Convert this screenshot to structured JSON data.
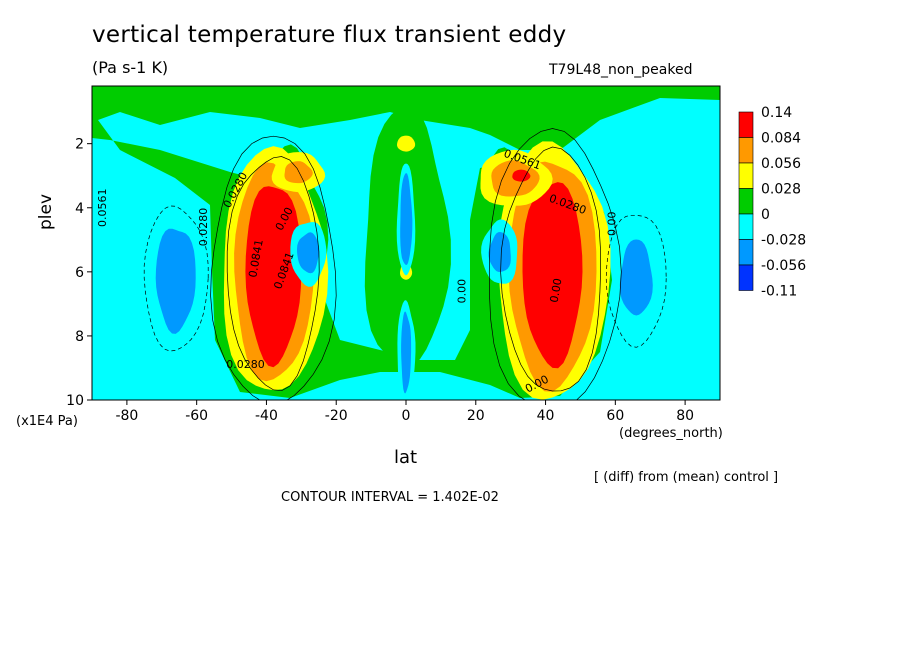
{
  "chart_data": {
    "type": "heatmap",
    "title": "vertical temperature flux transient eddy",
    "units": "(Pa s-1 K)",
    "experiment": "T79L48_non_peaked",
    "xlabel": "lat",
    "xunit": "(degrees_north)",
    "ylabel": "plev",
    "yunit": "(x1E4 Pa)",
    "xlim": [
      -90,
      90
    ],
    "ylim": [
      10,
      0.2
    ],
    "xticks": [
      "-80",
      "-60",
      "-40",
      "-20",
      "0",
      "20",
      "40",
      "60",
      "80"
    ],
    "yticks": [
      "2",
      "4",
      "6",
      "8",
      "10"
    ],
    "colorbar": {
      "levels": [
        "0.14",
        "0.084",
        "0.056",
        "0.028",
        "0",
        "-0.028",
        "-0.056",
        "-0.11"
      ],
      "colors": [
        "#ff0000",
        "#ff9900",
        "#ffff00",
        "#00cc00",
        "#00ffff",
        "#0099ff",
        "#0033ff"
      ]
    },
    "contour_labels": [
      "0.0280",
      "0.0561",
      "0.0841",
      "0.00",
      "0.0280",
      "0.0280",
      "0.0561",
      "0.0280",
      "0.00",
      "0.00",
      "0.00",
      "0.00",
      "0.0841"
    ],
    "note": "[ (diff) from (mean) control ]",
    "contour_interval": "CONTOUR INTERVAL = 1.402E-02",
    "features": [
      {
        "lat": -38,
        "plev": 6.0,
        "value": 0.1
      },
      {
        "lat": 42,
        "plev": 6.0,
        "value": 0.1
      },
      {
        "lat": 33,
        "plev": 3.0,
        "value": 0.14
      },
      {
        "lat": -31,
        "plev": 3.0,
        "value": 0.06
      },
      {
        "lat": 0,
        "plev": 5.5,
        "value": -0.06
      },
      {
        "lat": -66,
        "plev": 6.2,
        "value": -0.05
      },
      {
        "lat": -27,
        "plev": 5.5,
        "value": -0.04
      },
      {
        "lat": 27,
        "plev": 5.5,
        "value": -0.04
      },
      {
        "lat": 66,
        "plev": 6.2,
        "value": -0.04
      },
      {
        "lat": 0,
        "plev": 2.0,
        "value": 0.04
      }
    ]
  }
}
